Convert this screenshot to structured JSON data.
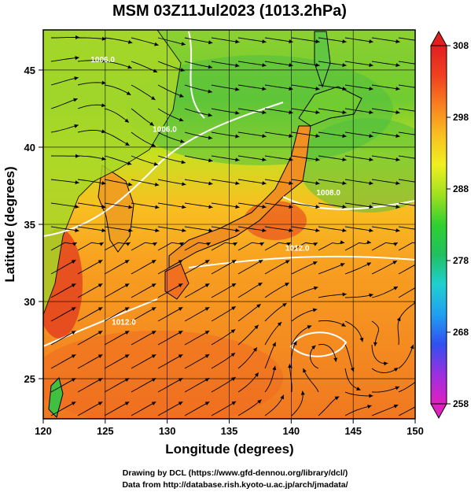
{
  "title": "MSM 03Z11Jul2023 (1013.2hPa)",
  "x_axis": {
    "label": "Longitude (degrees)",
    "range": [
      120,
      150
    ],
    "ticks": [
      "120",
      "125",
      "130",
      "135",
      "140",
      "145",
      "150"
    ]
  },
  "y_axis": {
    "label": "Latitude  (degrees)",
    "range": [
      22.4,
      47.6
    ],
    "ticks": [
      "25",
      "30",
      "35",
      "40",
      "45"
    ]
  },
  "colorbar": {
    "ticks": [
      "258",
      "268",
      "278",
      "288",
      "298",
      "308"
    ],
    "range": [
      258,
      308
    ],
    "colors": [
      "#e020c0",
      "#9b30e0",
      "#3050f0",
      "#20a0f0",
      "#20d0d0",
      "#20c060",
      "#30d030",
      "#a0e020",
      "#f0f020",
      "#f8c020",
      "#f88020",
      "#f04020",
      "#e02020"
    ]
  },
  "contour_labels": [
    {
      "text": "1006.0",
      "lon": 129.8,
      "lat": 41.0
    },
    {
      "text": "1006.0",
      "lon": 124.8,
      "lat": 45.5
    },
    {
      "text": "1008.0",
      "lon": 143.0,
      "lat": 36.9
    },
    {
      "text": "1012.0",
      "lon": 140.5,
      "lat": 33.3
    },
    {
      "text": "1012.0",
      "lon": 126.5,
      "lat": 28.5
    }
  ],
  "footer": {
    "line1": "Drawing by DCL (https://www.gfd-dennou.org/library/dcl/)",
    "line2": "Data from http://database.rish.kyoto-u.ac.jp/arch/jmadata/"
  }
}
